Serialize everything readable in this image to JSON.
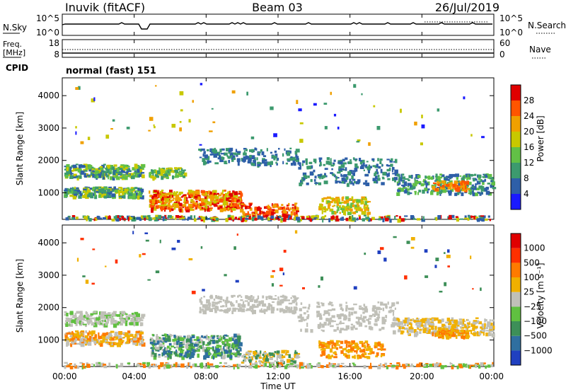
{
  "header": {
    "station": "Inuvik (fitACF)",
    "beam": "Beam 03",
    "date": "26/Jul/2019"
  },
  "panels": {
    "nsky_label": "N.Sky",
    "nsky_ticks": [
      "10^5",
      "10^0"
    ],
    "nsearch_label": "N.Search",
    "nsearch_ticks": [
      "10^5",
      "10^0"
    ],
    "freq_label_1": "Freq.",
    "freq_label_2": "[MHz]",
    "freq_ticks": [
      "18",
      "8"
    ],
    "nave_label": "Nave",
    "nave_ticks": [
      "60",
      "0"
    ],
    "cpid_label": "CPID",
    "cpid_value": "normal (fast) 151"
  },
  "chart_data": [
    {
      "type": "heatmap",
      "name": "power",
      "ylabel": "Slant Range [km]",
      "y_ticks": [
        "1000",
        "2000",
        "3000",
        "4000"
      ],
      "ylim": [
        180,
        4550
      ],
      "colorbar_label": "Power [dB]",
      "colorbar_ticks": [
        "4",
        "8",
        "12",
        "16",
        "20",
        "24",
        "28"
      ],
      "colorbar_colors": [
        "#1a1aff",
        "#2e5fa8",
        "#3c9a6e",
        "#62c046",
        "#c8c800",
        "#f0a000",
        "#ff5500",
        "#e00000"
      ]
    },
    {
      "type": "heatmap",
      "name": "velocity",
      "ylabel": "Slant Range [km]",
      "y_ticks": [
        "1000",
        "2000",
        "3000",
        "4000"
      ],
      "ylim": [
        180,
        4550
      ],
      "colorbar_label": "Velocity [m s⁻¹]",
      "colorbar_ticks": [
        "1000",
        "500",
        "100",
        "25",
        "−25",
        "−100",
        "−500",
        "−1000"
      ],
      "colorbar_colors": [
        "#2040c0",
        "#2f6fa0",
        "#3d8f58",
        "#60c040",
        "#c0c0b8",
        "#f0b000",
        "#ff7a00",
        "#ff3000",
        "#e00000"
      ]
    }
  ],
  "x_axis": {
    "ticks": [
      "00:00",
      "04:00",
      "08:00",
      "12:00",
      "16:00",
      "20:00",
      "00:00"
    ],
    "label": "Time UT"
  }
}
